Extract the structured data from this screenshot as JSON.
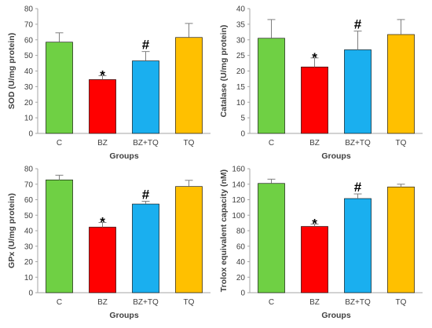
{
  "chart_data": [
    {
      "type": "bar",
      "categories": [
        "C",
        "BZ",
        "BZ+TQ",
        "TQ"
      ],
      "values": [
        58.5,
        34.5,
        46.5,
        61.5
      ],
      "errors": [
        6,
        2.5,
        6,
        9
      ],
      "markers": [
        "",
        "*",
        "#",
        ""
      ],
      "xlabel": "Groups",
      "ylabel": "SOD (U/mg protein)",
      "ylim": [
        0,
        80
      ],
      "yticks": [
        "0",
        "10",
        "20",
        "30",
        "40",
        "50",
        "60",
        "70",
        "80"
      ]
    },
    {
      "type": "bar",
      "categories": [
        "C",
        "BZ",
        "BZ+TQ",
        "TQ"
      ],
      "values": [
        30.5,
        21.3,
        26.8,
        31.7
      ],
      "errors": [
        6,
        2.9,
        6,
        4.8
      ],
      "markers": [
        "",
        "*",
        "#",
        ""
      ],
      "xlabel": "Groups",
      "ylabel": "Catalase (U/mg protein)",
      "ylim": [
        0,
        40
      ],
      "yticks": [
        "0",
        "5",
        "10",
        "15",
        "20",
        "25",
        "30",
        "35",
        "40"
      ]
    },
    {
      "type": "bar",
      "categories": [
        "C",
        "BZ",
        "BZ+TQ",
        "TQ"
      ],
      "values": [
        72.8,
        42.3,
        57.2,
        68.5
      ],
      "errors": [
        3,
        3,
        1.8,
        4
      ],
      "markers": [
        "",
        "*",
        "#",
        ""
      ],
      "xlabel": "Groups",
      "ylabel": "GPx (U/mg protein)",
      "ylim": [
        0,
        80
      ],
      "yticks": [
        "0",
        "10",
        "20",
        "30",
        "40",
        "50",
        "60",
        "70",
        "80"
      ]
    },
    {
      "type": "bar",
      "categories": [
        "C",
        "BZ",
        "BZ+TQ",
        "TQ"
      ],
      "values": [
        141,
        85.5,
        121.5,
        136.5
      ],
      "errors": [
        5.5,
        3,
        6,
        3.5
      ],
      "markers": [
        "",
        "*",
        "#",
        ""
      ],
      "xlabel": "Groups",
      "ylabel": "Trolox equivalent capacity (nM)",
      "ylim": [
        0,
        160
      ],
      "yticks": [
        "0",
        "20",
        "40",
        "60",
        "80",
        "100",
        "120",
        "140",
        "160"
      ]
    }
  ],
  "colors": [
    "#6fd044",
    "#ff0000",
    "#1aafef",
    "#ffc000"
  ]
}
